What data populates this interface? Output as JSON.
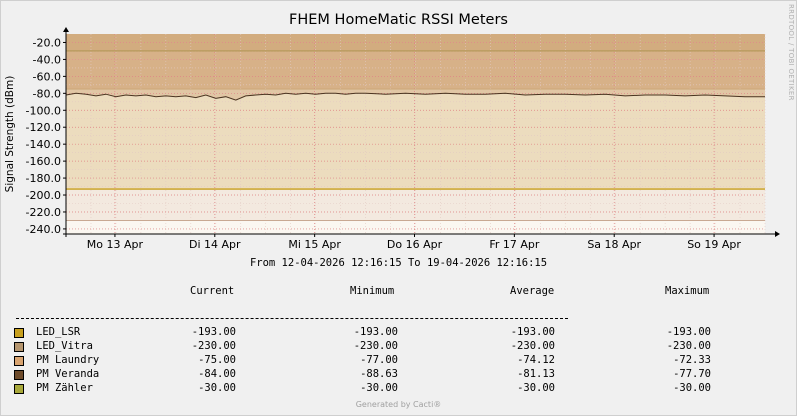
{
  "chart_data": {
    "type": "area",
    "title": "FHEM HomeMatic RSSI Meters",
    "ylabel": "Signal Strength (dBm)",
    "ylim": [
      -246,
      -10
    ],
    "yticks": [
      -20,
      -40,
      -60,
      -80,
      -100,
      -120,
      -140,
      -160,
      -180,
      -200,
      -220,
      -240
    ],
    "ytick_labels": [
      "-20.0",
      "-40.0",
      "-60.0",
      "-80.0",
      "-100.0",
      "-120.0",
      "-140.0",
      "-160.0",
      "-180.0",
      "-200.0",
      "-220.0",
      "-240.0"
    ],
    "xlim": [
      "2026-04-12 12:16",
      "2026-04-19 12:16"
    ],
    "x_tick_labels": [
      "Mo 13 Apr",
      "Di 14 Apr",
      "Mi 15 Apr",
      "Do 16 Apr",
      "Fr 17 Apr",
      "Sa 18 Apr",
      "So 19 Apr"
    ],
    "x_tick_days_from_start": [
      0.49,
      1.49,
      2.49,
      3.49,
      4.49,
      5.49,
      6.49
    ],
    "grid": true,
    "series": [
      {
        "name": "LED_LSR",
        "color": "#c8a01e",
        "style": "line",
        "values": [
          -193,
          -193
        ]
      },
      {
        "name": "LED_Vitra",
        "color": "#c8a07a",
        "style": "line",
        "values": [
          -230,
          -230
        ]
      },
      {
        "name": "PM Laundry",
        "color": "#d9b070",
        "style": "area",
        "values": [
          -75,
          -75
        ]
      },
      {
        "name": "PM Veranda",
        "color": "#6e4b2a",
        "style": "line",
        "x": [
          0,
          0.1,
          0.2,
          0.3,
          0.4,
          0.5,
          0.6,
          0.7,
          0.8,
          0.9,
          1.0,
          1.1,
          1.2,
          1.3,
          1.4,
          1.5,
          1.6,
          1.7,
          1.8,
          1.9,
          2.0,
          2.1,
          2.2,
          2.3,
          2.4,
          2.5,
          2.6,
          2.7,
          2.8,
          2.9,
          3.0,
          3.2,
          3.4,
          3.6,
          3.8,
          4.0,
          4.2,
          4.4,
          4.6,
          4.8,
          5.0,
          5.2,
          5.4,
          5.6,
          5.8,
          6.0,
          6.2,
          6.4,
          6.6,
          6.8,
          7.0
        ],
        "values": [
          -82,
          -80,
          -81,
          -83,
          -81,
          -84,
          -82,
          -83,
          -82,
          -84,
          -83,
          -84,
          -83,
          -85,
          -82,
          -86,
          -84,
          -88,
          -83,
          -82,
          -81,
          -82,
          -80,
          -81,
          -80,
          -81,
          -80,
          -80,
          -81,
          -80,
          -80,
          -81,
          -80,
          -81,
          -80,
          -81,
          -81,
          -80,
          -82,
          -81,
          -81,
          -82,
          -81,
          -83,
          -82,
          -82,
          -83,
          -82,
          -83,
          -84,
          -84
        ]
      },
      {
        "name": "PM Zähler",
        "color": "#c9a96e",
        "style": "area",
        "values": [
          -30,
          -30
        ]
      }
    ]
  },
  "subtitle": "From 12-04-2026 12:16:15 To 19-04-2026 12:16:15",
  "legend": {
    "headers": [
      "Current",
      "Minimum",
      "Average",
      "Maximum"
    ],
    "rows": [
      {
        "name": "LED_LSR",
        "color": "#c8a01e",
        "current": "-193.00",
        "minimum": "-193.00",
        "average": "-193.00",
        "maximum": "-193.00"
      },
      {
        "name": "LED_Vitra",
        "color": "#b5956e",
        "current": "-230.00",
        "minimum": "-230.00",
        "average": "-230.00",
        "maximum": "-230.00"
      },
      {
        "name": "PM Laundry",
        "color": "#d9a470",
        "current": "-75.00",
        "minimum": "-77.00",
        "average": "-74.12",
        "maximum": "-72.33"
      },
      {
        "name": "PM Veranda",
        "color": "#6e4b2a",
        "current": "-84.00",
        "minimum": "-88.63",
        "average": "-81.13",
        "maximum": "-77.70"
      },
      {
        "name": "PM Zähler",
        "color": "#a8a83a",
        "current": "-30.00",
        "minimum": "-30.00",
        "average": "-30.00",
        "maximum": "-30.00"
      }
    ]
  },
  "vendor_text": "RRDTOOL / TOBI OETIKER",
  "footer": "Generated by Cacti®"
}
